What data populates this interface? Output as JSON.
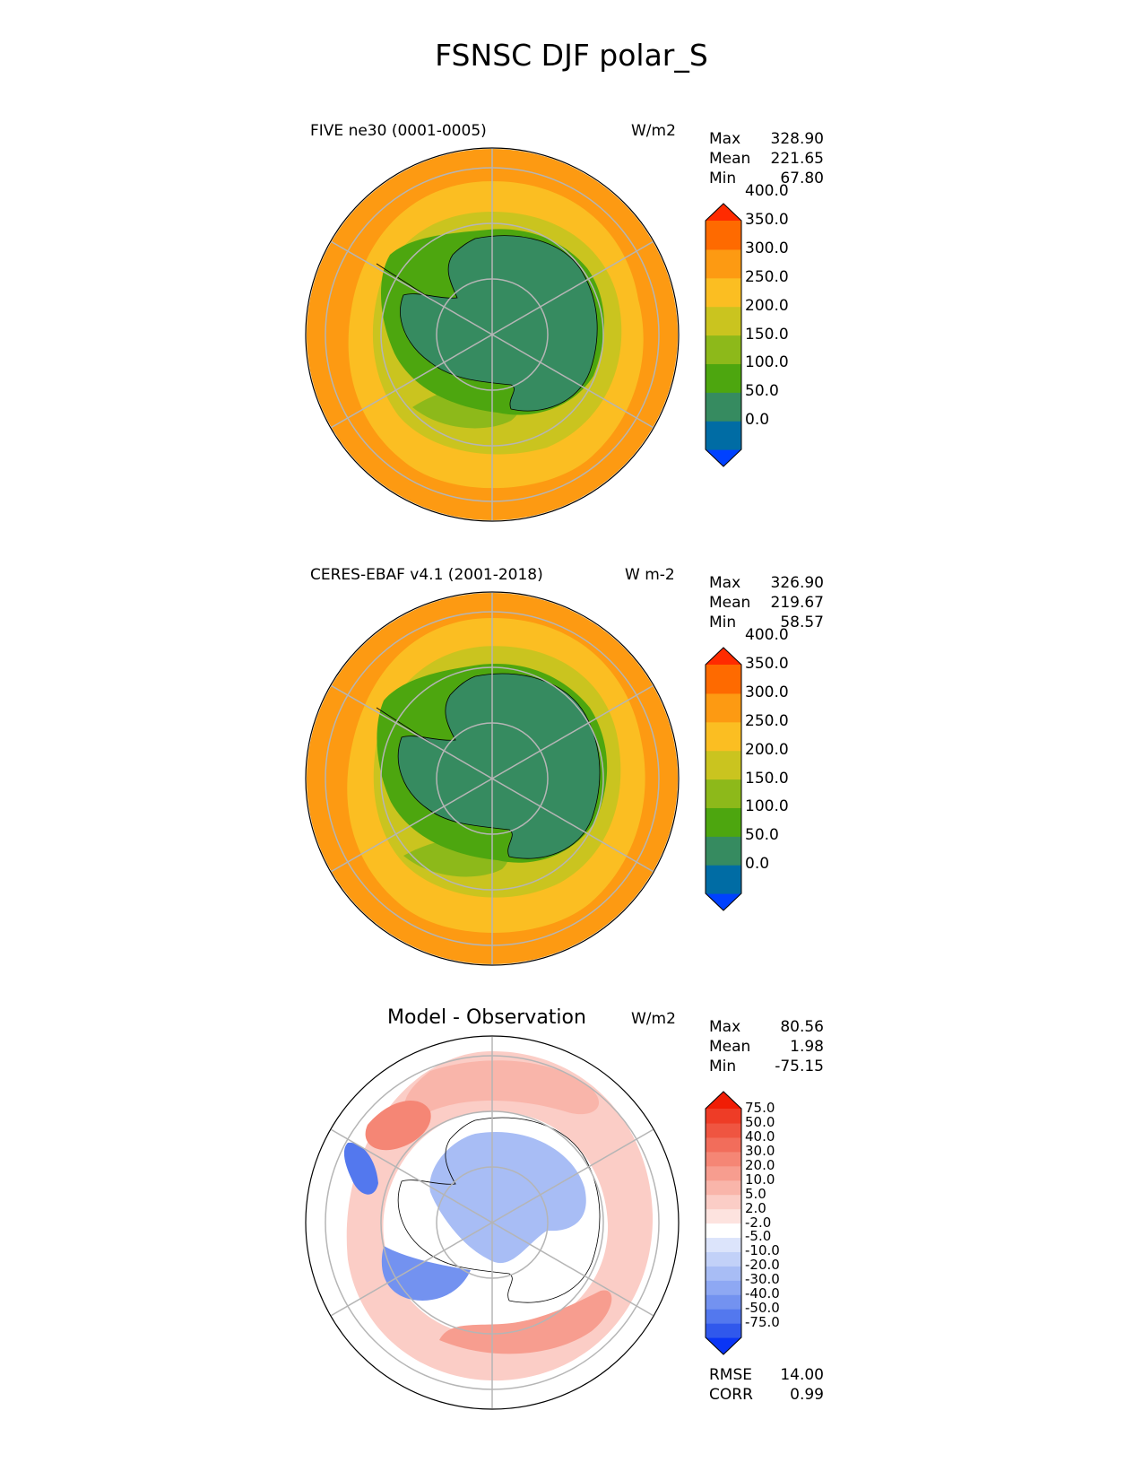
{
  "title": "FSNSC DJF polar_S",
  "colors": {
    "abs_levels": [
      "#0041ff",
      "#006ca4",
      "#368b60",
      "#4da60f",
      "#8db91a",
      "#cac41f",
      "#fbbe22",
      "#fd9a12",
      "#fe6a00",
      "#ff2b00"
    ],
    "diff_levels": [
      "#0a35f5",
      "#3058ec",
      "#5378ee",
      "#7392f0",
      "#8ea8f3",
      "#a8bdf5",
      "#c2d1f8",
      "#dce4fb",
      "#ffffff",
      "#fde3df",
      "#fbcdc6",
      "#f9b5aa",
      "#f79d8f",
      "#f58675",
      "#f26d5b",
      "#ef5541",
      "#ee3c26",
      "#f01d05"
    ],
    "land_outline": "#000000",
    "grid": "#b5b5b5"
  },
  "panels": [
    {
      "title": "FIVE ne30 (0001-0005)",
      "units": "W/m2",
      "stats": {
        "max_label": "Max",
        "max": "328.90",
        "mean_label": "Mean",
        "mean": "221.65",
        "min_label": "Min",
        "min": "67.80"
      },
      "colorbar": {
        "ticks": [
          "400.0",
          "350.0",
          "300.0",
          "250.0",
          "200.0",
          "150.0",
          "100.0",
          "50.0",
          "0.0"
        ]
      }
    },
    {
      "title": "CERES-EBAF v4.1 (2001-2018)",
      "units": "W m-2",
      "stats": {
        "max_label": "Max",
        "max": "326.90",
        "mean_label": "Mean",
        "mean": "219.67",
        "min_label": "Min",
        "min": "58.57"
      },
      "colorbar": {
        "ticks": [
          "400.0",
          "350.0",
          "300.0",
          "250.0",
          "200.0",
          "150.0",
          "100.0",
          "50.0",
          "0.0"
        ]
      }
    },
    {
      "title": "Model - Observation",
      "units": "W/m2",
      "stats": {
        "max_label": "Max",
        "max": "80.56",
        "mean_label": "Mean",
        "mean": "1.98",
        "min_label": "Min",
        "min": "-75.15"
      },
      "colorbar": {
        "ticks": [
          "75.0",
          "50.0",
          "40.0",
          "30.0",
          "20.0",
          "10.0",
          "5.0",
          "2.0",
          "-2.0",
          "-5.0",
          "-10.0",
          "-20.0",
          "-30.0",
          "-40.0",
          "-50.0",
          "-75.0"
        ]
      }
    }
  ],
  "metrics": {
    "rmse_label": "RMSE",
    "rmse": "14.00",
    "corr_label": "CORR",
    "corr": "0.99"
  },
  "chart_data": [
    {
      "type": "heatmap",
      "title": "FIVE ne30 (0001-0005)",
      "projection": "south polar stereographic",
      "variable": "FSNSC",
      "season": "DJF",
      "units": "W/m2",
      "max": 328.9,
      "mean": 221.65,
      "min": 67.8,
      "levels": [
        0,
        50,
        100,
        150,
        200,
        250,
        300,
        350,
        400
      ],
      "extend": "both"
    },
    {
      "type": "heatmap",
      "title": "CERES-EBAF v4.1 (2001-2018)",
      "projection": "south polar stereographic",
      "variable": "FSNSC",
      "season": "DJF",
      "units": "W m-2",
      "max": 326.9,
      "mean": 219.67,
      "min": 58.57,
      "levels": [
        0,
        50,
        100,
        150,
        200,
        250,
        300,
        350,
        400
      ],
      "extend": "both"
    },
    {
      "type": "heatmap",
      "title": "Model - Observation",
      "projection": "south polar stereographic",
      "variable": "FSNSC",
      "season": "DJF",
      "units": "W/m2",
      "max": 80.56,
      "mean": 1.98,
      "min": -75.15,
      "rmse": 14.0,
      "corr": 0.99,
      "levels": [
        -75,
        -50,
        -40,
        -30,
        -20,
        -10,
        -5,
        -2,
        2,
        5,
        10,
        20,
        30,
        40,
        50,
        75
      ],
      "extend": "both"
    }
  ]
}
